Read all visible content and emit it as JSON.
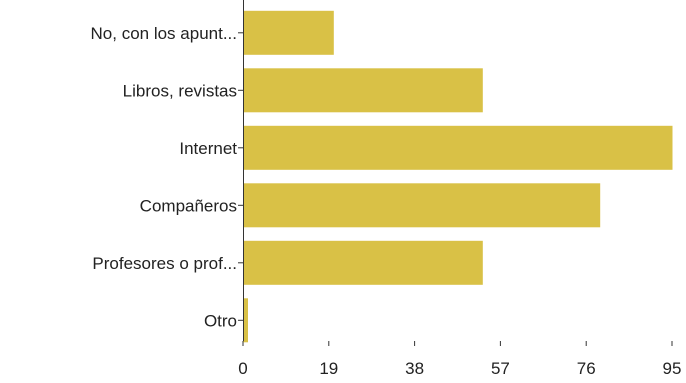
{
  "chart_data": {
    "type": "bar",
    "orientation": "horizontal",
    "categories": [
      "No, con los apunt...",
      "Libros, revistas",
      "Internet",
      "Compañeros",
      "Profesores o prof...",
      "Otro"
    ],
    "values": [
      20,
      53,
      95,
      79,
      53,
      1
    ],
    "xlim": [
      0,
      95
    ],
    "xticks": [
      "0",
      "19",
      "38",
      "57",
      "76",
      "95"
    ],
    "bar_color": "#d9c146",
    "grid": false,
    "title": "",
    "xlabel": "",
    "ylabel": ""
  }
}
